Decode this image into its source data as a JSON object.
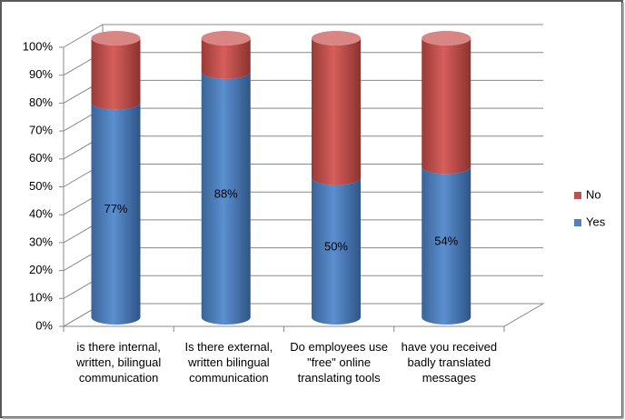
{
  "chart_data": {
    "type": "stacked-cylinder",
    "categories": [
      "is there internal, written, bilingual communication",
      "Is there external, written bilingual communication",
      "Do employees use \"free\" online translating tools",
      "have you received badly translated messages"
    ],
    "series": [
      {
        "name": "Yes",
        "color": "#4f81bd",
        "values": [
          77,
          88,
          50,
          54
        ],
        "value_labels": [
          "77%",
          "88%",
          "50%",
          "54%"
        ]
      },
      {
        "name": "No",
        "color": "#c0504d",
        "values": [
          23,
          12,
          50,
          46
        ]
      }
    ],
    "ylim": [
      0,
      100
    ],
    "yticks": [
      {
        "value": 0,
        "label": "0%"
      },
      {
        "value": 10,
        "label": "10%"
      },
      {
        "value": 20,
        "label": "20%"
      },
      {
        "value": 30,
        "label": "30%"
      },
      {
        "value": 40,
        "label": "40%"
      },
      {
        "value": 50,
        "label": "50%"
      },
      {
        "value": 60,
        "label": "60%"
      },
      {
        "value": 70,
        "label": "70%"
      },
      {
        "value": 80,
        "label": "80%"
      },
      {
        "value": 90,
        "label": "90%"
      },
      {
        "value": 100,
        "label": "100%"
      }
    ],
    "grid": true,
    "legend": "right"
  }
}
